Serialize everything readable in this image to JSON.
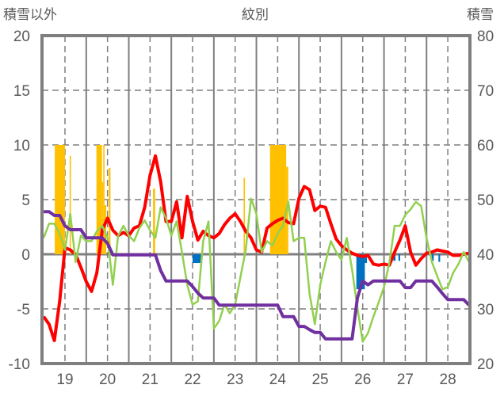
{
  "chart_data": {
    "type": "line",
    "title": "紋別",
    "ylabel_left": "積雪以外",
    "ylabel_right": "積雪",
    "xlim": [
      18.46,
      28.52
    ],
    "ylim_left": [
      -10,
      20
    ],
    "ylim_right": [
      20,
      80
    ],
    "x_ticks": [
      "19",
      "20",
      "21",
      "22",
      "23",
      "24",
      "25",
      "26",
      "27",
      "28"
    ],
    "x_tick_values": [
      19,
      20,
      21,
      22,
      23,
      24,
      25,
      26,
      27,
      28
    ],
    "y_ticks_left": [
      20,
      15,
      10,
      5,
      0,
      -5,
      -10
    ],
    "y_ticks_right": [
      80,
      70,
      60,
      50,
      40,
      30,
      20
    ],
    "grid": true,
    "colors": {
      "red": "#ff0000",
      "green": "#92d050",
      "purple": "#7030a0",
      "orange": "#ffc000",
      "blue": "#0070c0",
      "axis": "#7f7f7f"
    },
    "x_start": 18.5,
    "x_step": 0.125,
    "series": [
      {
        "name": "red",
        "axis": "left",
        "color": "#ff0000",
        "values": [
          -5.7,
          -6.4,
          -7.9,
          -4.3,
          0.6,
          0.4,
          0.0,
          -1.2,
          -2.5,
          -3.4,
          -1.7,
          2.2,
          3.3,
          2.2,
          1.7,
          2.0,
          1.7,
          2.4,
          2.6,
          4.3,
          7.2,
          9.0,
          6.6,
          3.0,
          3.0,
          4.8,
          1.5,
          5.3,
          3.0,
          1.3,
          2.1,
          1.7,
          1.5,
          1.9,
          2.7,
          3.3,
          3.7,
          3.0,
          2.1,
          1.5,
          0.4,
          0.2,
          2.4,
          2.8,
          3.1,
          3.3,
          2.9,
          2.8,
          5.1,
          6.2,
          5.9,
          4.0,
          4.4,
          4.3,
          2.8,
          1.4,
          0.8,
          0.4,
          0.1,
          -0.1,
          -0.2,
          -0.1,
          -0.9,
          -1.0,
          -0.9,
          -1.0,
          0.2,
          1.3,
          2.6,
          0.2,
          -1.0,
          -0.4,
          0.1,
          0.2,
          0.4,
          0.3,
          0.2,
          -0.1,
          -0.1,
          0.0,
          0.1
        ]
      },
      {
        "name": "green",
        "axis": "left",
        "color": "#92d050",
        "values": [
          1.5,
          2.8,
          2.8,
          1.9,
          0.4,
          3.7,
          -0.7,
          1.7,
          1.2,
          1.2,
          2.1,
          2.6,
          1.5,
          -2.8,
          1.7,
          2.6,
          1.7,
          1.2,
          2.4,
          3.1,
          2.2,
          1.5,
          4.3,
          3.3,
          1.7,
          3.0,
          0.2,
          -2.8,
          -4.6,
          -4.3,
          1.2,
          3.0,
          -6.8,
          -6.1,
          -4.6,
          -5.4,
          -4.6,
          -2.1,
          0.4,
          5.1,
          3.7,
          0.2,
          1.2,
          0.8,
          1.9,
          2.6,
          4.8,
          1.2,
          1.5,
          1.5,
          -3.6,
          -6.4,
          -2.8,
          -0.7,
          1.2,
          0.2,
          -0.5,
          1.5,
          -1.4,
          -4.9,
          -8.0,
          -7.2,
          -5.7,
          -4.4,
          -3.0,
          -0.8,
          2.6,
          2.6,
          3.6,
          4.1,
          4.8,
          4.4,
          1.5,
          -0.7,
          -2.0,
          -3.2,
          -3.0,
          -1.7,
          -0.9,
          0.2,
          -0.7
        ]
      },
      {
        "name": "purple",
        "axis": "right",
        "color": "#7030a0",
        "values": [
          47.8,
          47.8,
          47.1,
          47.1,
          45.2,
          44.5,
          44.5,
          44.5,
          43.0,
          43.0,
          43.0,
          43.0,
          42.0,
          39.9,
          39.9,
          39.9,
          39.9,
          39.9,
          39.9,
          39.9,
          39.9,
          39.9,
          37.0,
          35.1,
          35.1,
          35.1,
          35.1,
          35.1,
          34.1,
          32.9,
          32.0,
          32.0,
          32.0,
          30.7,
          30.7,
          30.7,
          30.7,
          30.7,
          30.7,
          30.7,
          30.7,
          30.7,
          30.7,
          30.7,
          30.7,
          28.6,
          28.6,
          28.6,
          26.8,
          26.8,
          26.2,
          25.7,
          25.7,
          24.5,
          24.5,
          24.5,
          24.5,
          24.5,
          24.5,
          32.0,
          35.1,
          34.4,
          35.1,
          35.1,
          35.1,
          35.1,
          35.1,
          35.1,
          33.9,
          33.9,
          35.1,
          35.1,
          35.1,
          35.1,
          34.0,
          32.8,
          31.7,
          31.7,
          31.7,
          31.7,
          30.7
        ]
      }
    ],
    "bars": [
      {
        "name": "orange",
        "color": "#ffc000",
        "items": [
          [
            18.76,
            19.0,
            10
          ],
          [
            19.11,
            19.14,
            9.0
          ],
          [
            19.74,
            19.87,
            10
          ],
          [
            19.87,
            19.9,
            6.6
          ],
          [
            19.9,
            19.93,
            10
          ],
          [
            19.93,
            19.97,
            4.5
          ],
          [
            20.03,
            20.07,
            7.9
          ],
          [
            21.07,
            21.12,
            6.0
          ],
          [
            23.2,
            23.23,
            7.0
          ],
          [
            23.82,
            24.2,
            10
          ],
          [
            24.2,
            24.25,
            8.0
          ]
        ]
      },
      {
        "name": "blue",
        "color": "#0070c0",
        "items": [
          [
            22.0,
            22.2,
            -0.8
          ],
          [
            25.85,
            26.05,
            -3.2
          ],
          [
            26.05,
            26.1,
            -0.8
          ],
          [
            26.72,
            26.77,
            -0.6
          ],
          [
            26.84,
            26.88,
            -0.6
          ],
          [
            27.62,
            27.67,
            -0.6
          ],
          [
            27.78,
            27.82,
            -0.7
          ]
        ]
      }
    ]
  }
}
